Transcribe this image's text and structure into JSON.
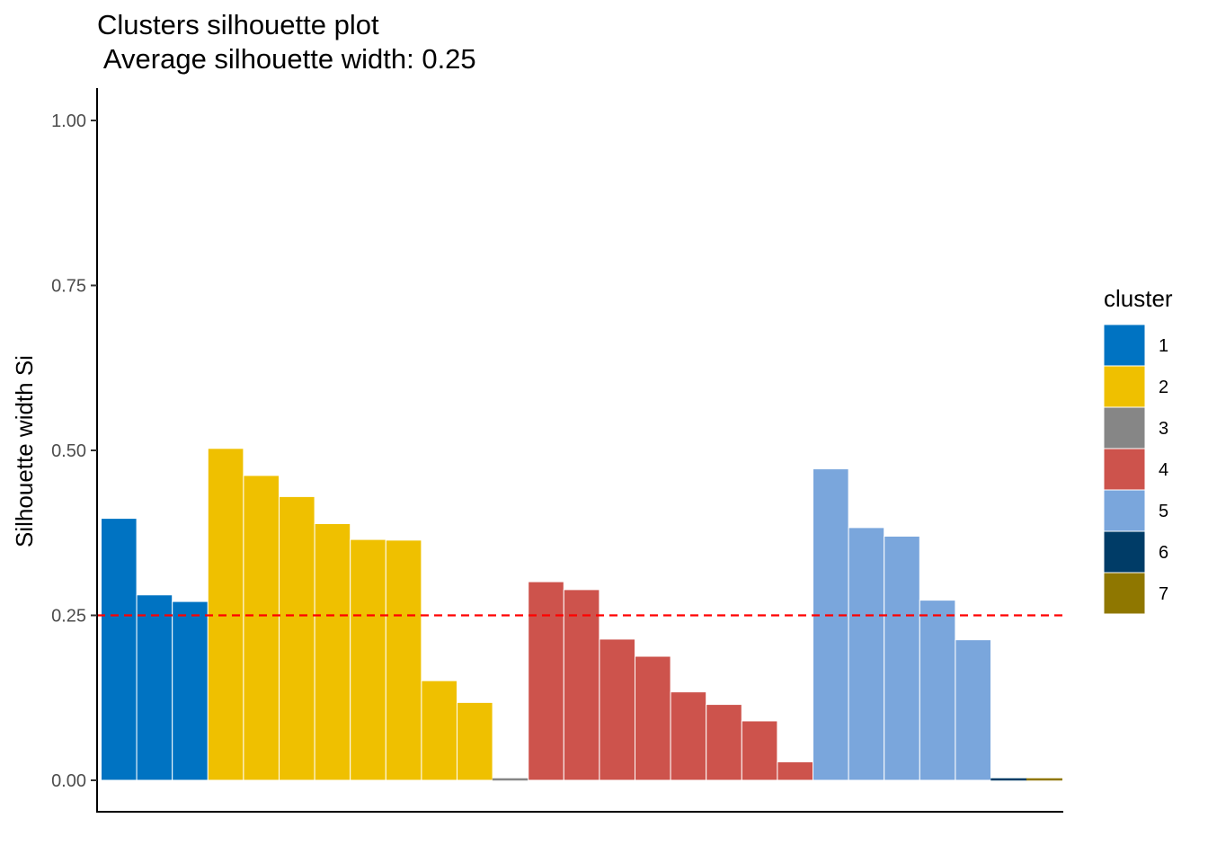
{
  "chart_data": {
    "type": "bar",
    "title": "Clusters silhouette plot",
    "subtitle": " Average silhouette width: 0.25",
    "xlabel": "",
    "ylabel": "Silhouette width Si",
    "ylim": [
      -0.1,
      1.05
    ],
    "yticks": [
      "0.00",
      "0.25",
      "0.50",
      "0.75",
      "1.00"
    ],
    "ytick_values": [
      0,
      0.25,
      0.5,
      0.75,
      1.0
    ],
    "average_line": 0.25,
    "average_line_color": "#ff0000",
    "grid": false,
    "legend_position": "right",
    "legend_title": "cluster",
    "clusters": [
      {
        "name": "1",
        "color": "#0073c2"
      },
      {
        "name": "2",
        "color": "#efc000"
      },
      {
        "name": "3",
        "color": "#868686"
      },
      {
        "name": "4",
        "color": "#cd534c"
      },
      {
        "name": "5",
        "color": "#7aa6dc"
      },
      {
        "name": "6",
        "color": "#003c67"
      },
      {
        "name": "7",
        "color": "#8f7700"
      }
    ],
    "bars": [
      {
        "cluster": "1",
        "value": 0.397
      },
      {
        "cluster": "1",
        "value": 0.281
      },
      {
        "cluster": "1",
        "value": 0.271
      },
      {
        "cluster": "2",
        "value": 0.503
      },
      {
        "cluster": "2",
        "value": 0.462
      },
      {
        "cluster": "2",
        "value": 0.43
      },
      {
        "cluster": "2",
        "value": 0.389
      },
      {
        "cluster": "2",
        "value": 0.365
      },
      {
        "cluster": "2",
        "value": 0.364
      },
      {
        "cluster": "2",
        "value": 0.151
      },
      {
        "cluster": "2",
        "value": 0.118
      },
      {
        "cluster": "3",
        "value": 0.0
      },
      {
        "cluster": "4",
        "value": 0.301
      },
      {
        "cluster": "4",
        "value": 0.289
      },
      {
        "cluster": "4",
        "value": 0.214
      },
      {
        "cluster": "4",
        "value": 0.188
      },
      {
        "cluster": "4",
        "value": 0.134
      },
      {
        "cluster": "4",
        "value": 0.115
      },
      {
        "cluster": "4",
        "value": 0.09
      },
      {
        "cluster": "4",
        "value": 0.028
      },
      {
        "cluster": "5",
        "value": 0.472
      },
      {
        "cluster": "5",
        "value": 0.383
      },
      {
        "cluster": "5",
        "value": 0.37
      },
      {
        "cluster": "5",
        "value": 0.273
      },
      {
        "cluster": "5",
        "value": 0.213
      },
      {
        "cluster": "6",
        "value": 0.0
      },
      {
        "cluster": "7",
        "value": 0.0
      }
    ]
  }
}
